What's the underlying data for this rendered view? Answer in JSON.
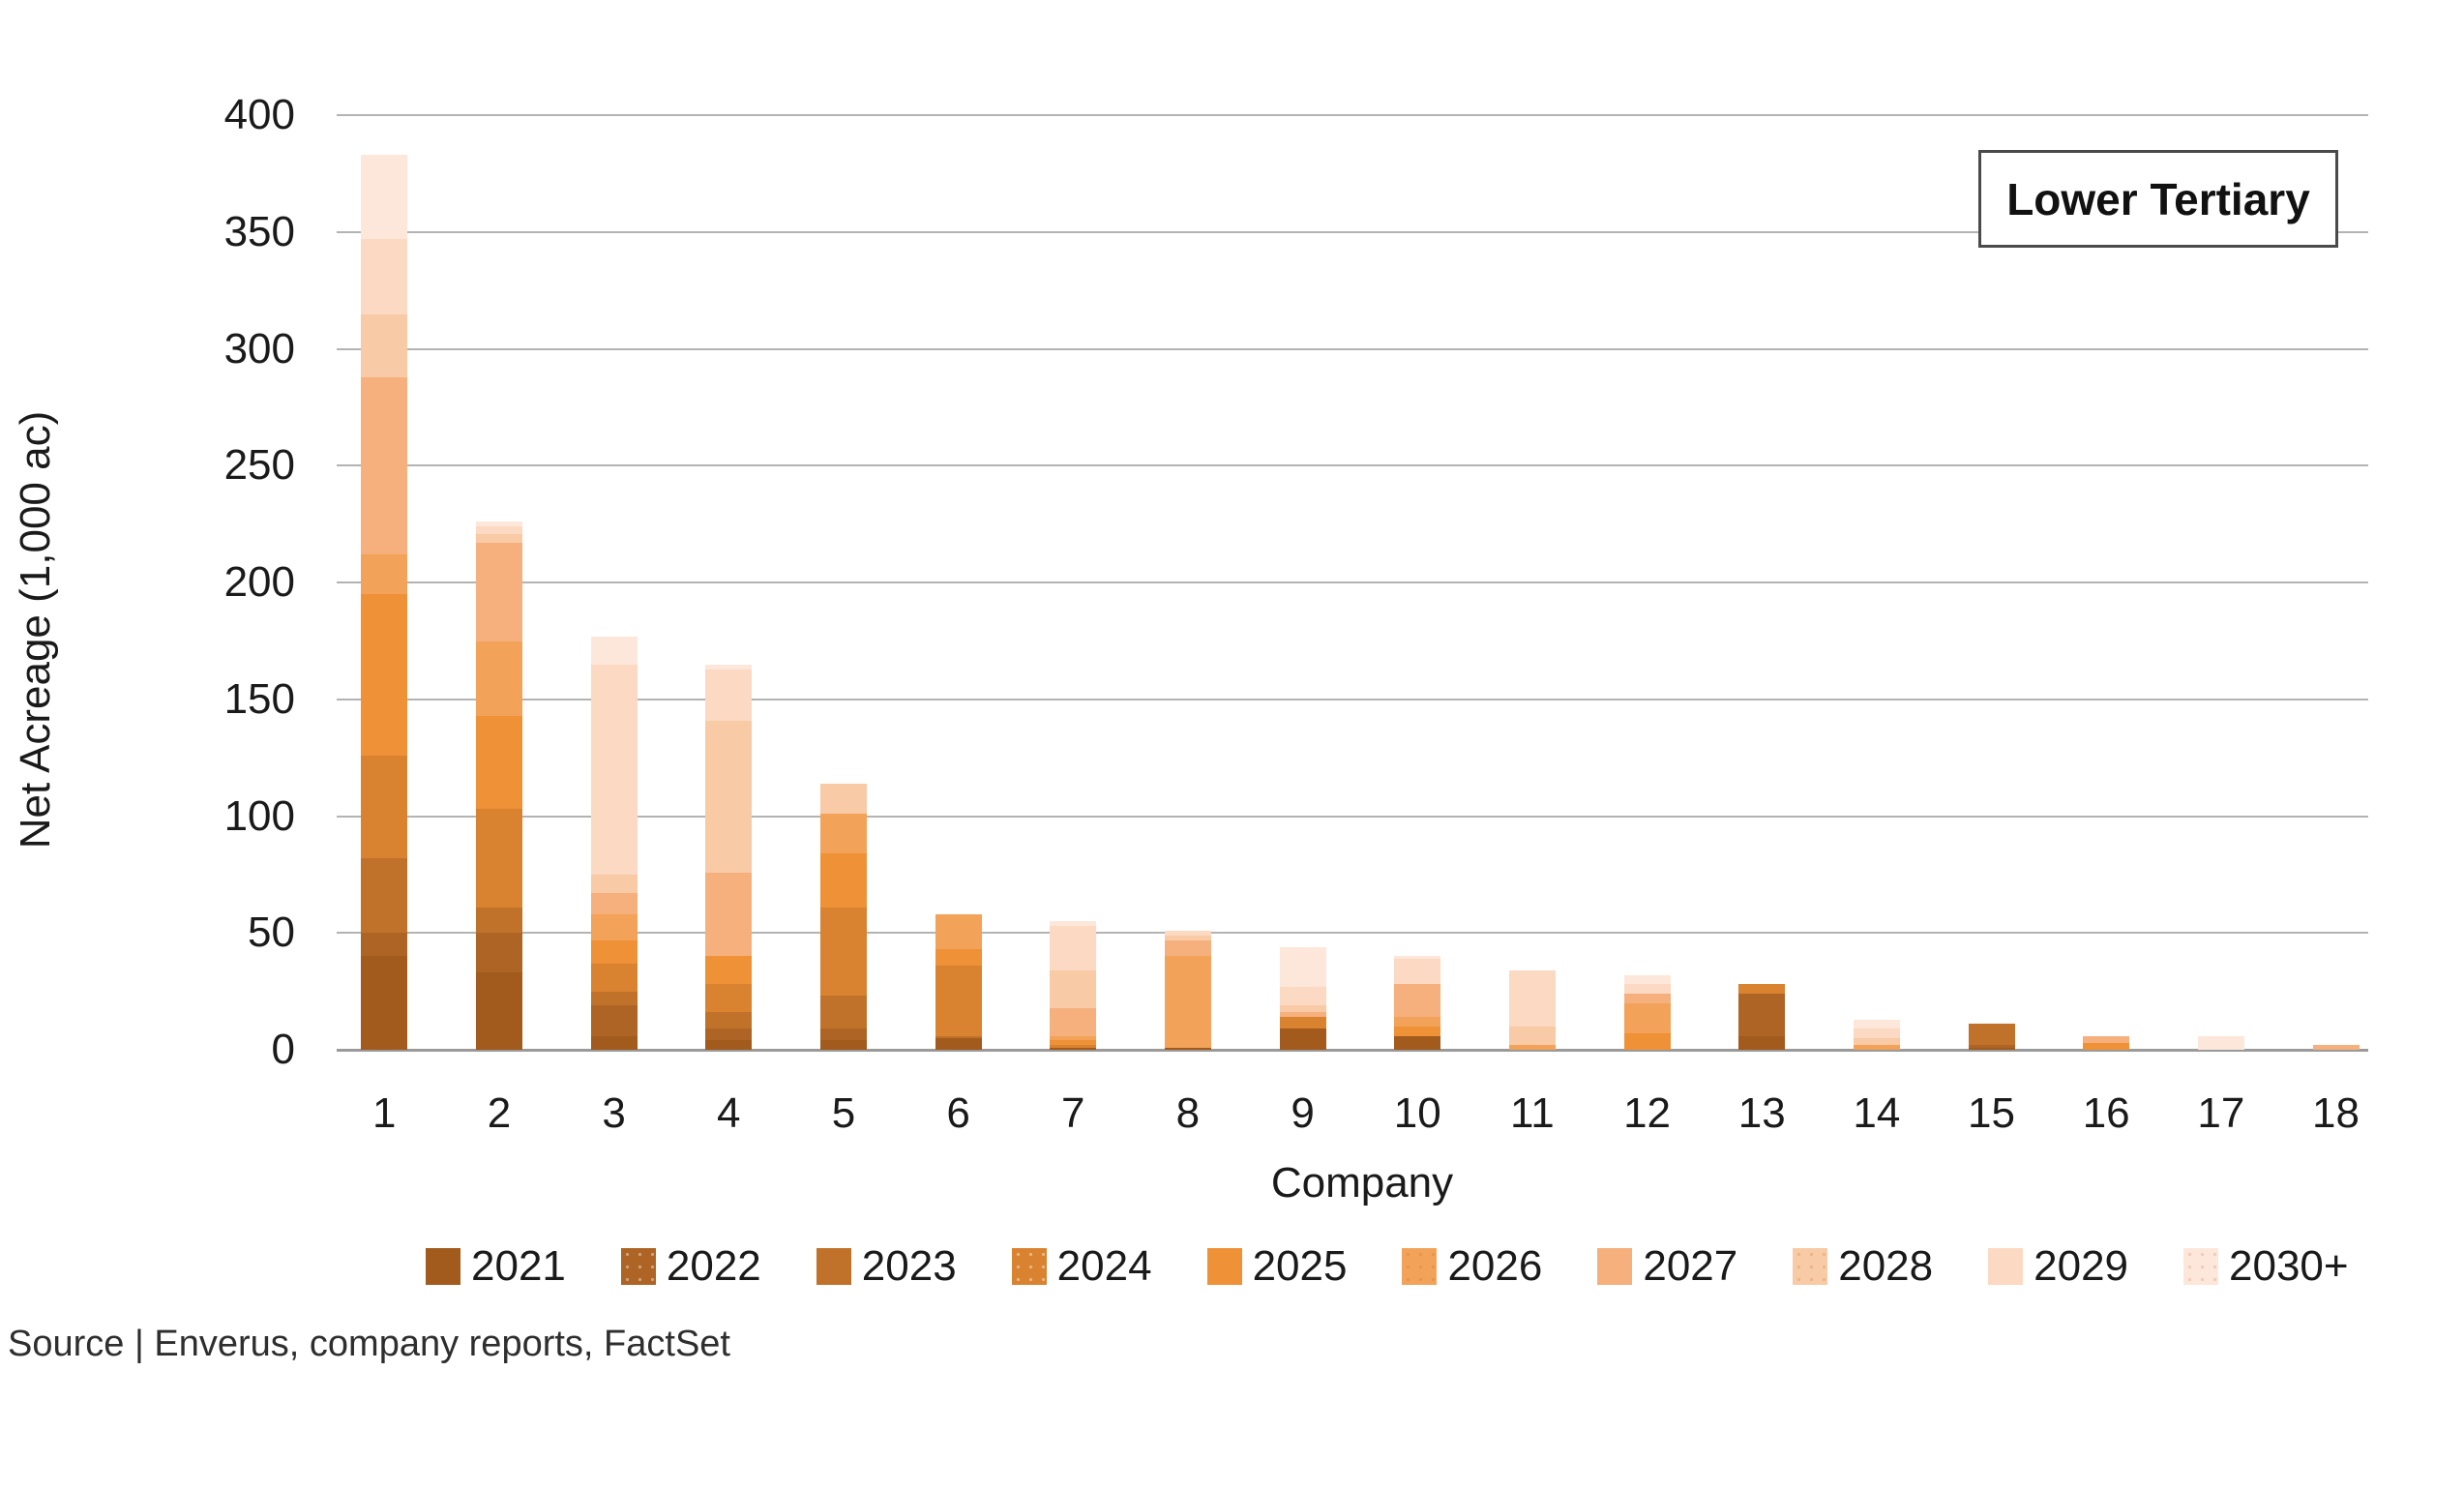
{
  "title_box": {
    "label": "Lower Tertiary"
  },
  "source": {
    "text": "Source | Enverus, company reports, FactSet"
  },
  "chart_data": {
    "type": "bar",
    "stacked": true,
    "title": "",
    "xlabel": "Company",
    "ylabel": "Net Acreage (1,000 ac)",
    "ylim": [
      0,
      400
    ],
    "y_ticks": [
      0,
      50,
      100,
      150,
      200,
      250,
      300,
      350,
      400
    ],
    "grid": "horizontal",
    "legend_position": "bottom",
    "categories": [
      "1",
      "2",
      "3",
      "4",
      "5",
      "6",
      "7",
      "8",
      "9",
      "10",
      "11",
      "12",
      "13",
      "14",
      "15",
      "16",
      "17",
      "18"
    ],
    "series": [
      {
        "name": "2021",
        "color": "#a25a1d",
        "pattern": "none",
        "values": [
          40,
          33,
          6,
          4,
          4,
          5,
          1,
          1,
          9,
          6,
          0,
          0,
          6,
          0,
          1,
          0,
          0,
          0
        ]
      },
      {
        "name": "2022",
        "color": "#ae6424",
        "pattern": "dots-light",
        "values": [
          10,
          17,
          13,
          5,
          5,
          0,
          0,
          0,
          0,
          0,
          0,
          0,
          18,
          0,
          1,
          0,
          0,
          0
        ]
      },
      {
        "name": "2023",
        "color": "#c1722a",
        "pattern": "none",
        "values": [
          32,
          11,
          6,
          7,
          14,
          1,
          0,
          0,
          0,
          0,
          0,
          0,
          0,
          0,
          9,
          0,
          0,
          0
        ]
      },
      {
        "name": "2024",
        "color": "#d98330",
        "pattern": "dots-light",
        "values": [
          44,
          42,
          12,
          12,
          38,
          30,
          1,
          0,
          5,
          0,
          0,
          0,
          4,
          0,
          0,
          0,
          0,
          0
        ]
      },
      {
        "name": "2025",
        "color": "#ee9137",
        "pattern": "none",
        "values": [
          69,
          40,
          10,
          12,
          23,
          7,
          2,
          0,
          0,
          4,
          0,
          7,
          0,
          0,
          0,
          3,
          0,
          0
        ]
      },
      {
        "name": "2026",
        "color": "#f2a259",
        "pattern": "dots-dark",
        "values": [
          17,
          32,
          11,
          0,
          17,
          15,
          2,
          39,
          0,
          4,
          2,
          13,
          0,
          2,
          0,
          0,
          0,
          0
        ]
      },
      {
        "name": "2027",
        "color": "#f5b07d",
        "pattern": "none",
        "values": [
          76,
          42,
          9,
          36,
          0,
          0,
          12,
          7,
          2,
          14,
          0,
          4,
          0,
          0,
          0,
          3,
          0,
          2
        ]
      },
      {
        "name": "2028",
        "color": "#f8caa6",
        "pattern": "dots-dark",
        "values": [
          27,
          4,
          8,
          65,
          13,
          0,
          16,
          2,
          3,
          0,
          8,
          0,
          0,
          3,
          0,
          0,
          0,
          0
        ]
      },
      {
        "name": "2029",
        "color": "#fbd9c3",
        "pattern": "none",
        "values": [
          32,
          3,
          90,
          22,
          0,
          0,
          19,
          2,
          8,
          11,
          24,
          4,
          0,
          4,
          0,
          0,
          0,
          0
        ]
      },
      {
        "name": "2030+",
        "color": "#fde7da",
        "pattern": "dots-dark",
        "values": [
          36,
          2,
          12,
          2,
          0,
          0,
          2,
          0,
          17,
          1,
          0,
          4,
          0,
          4,
          0,
          0,
          6,
          0
        ]
      }
    ]
  }
}
